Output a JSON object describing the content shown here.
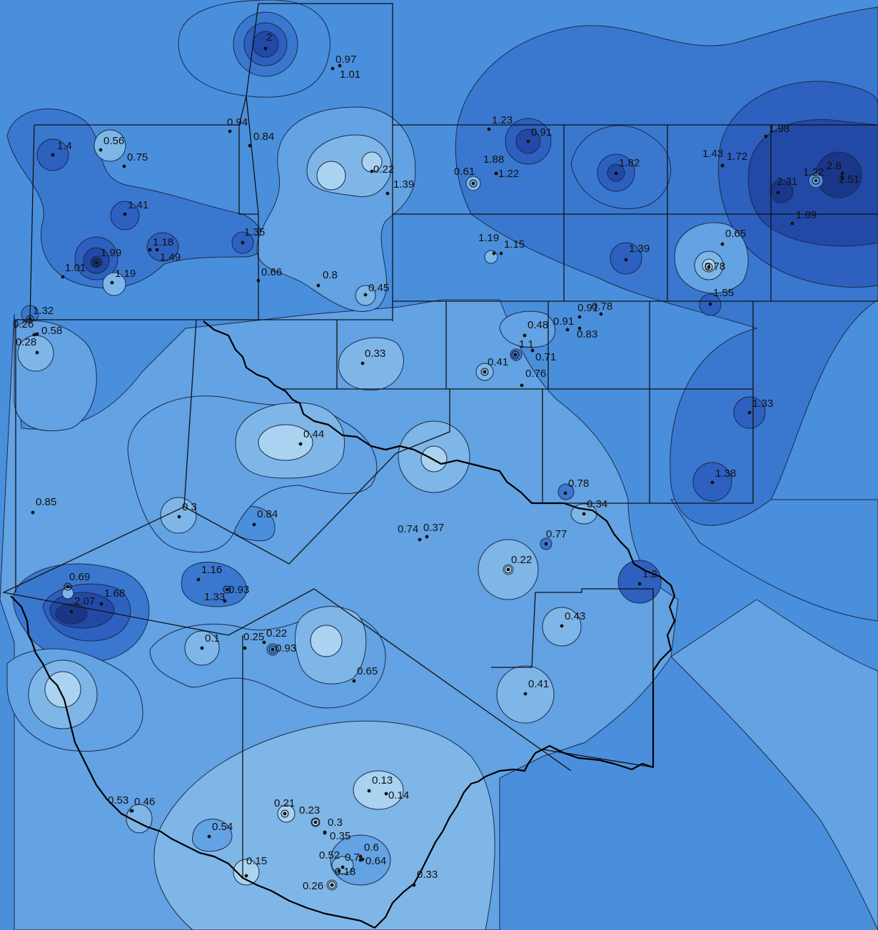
{
  "map": {
    "colors": {
      "c1": "#a9d3f0",
      "c2": "#7fb6e8",
      "c3": "#63a2e3",
      "c4": "#4a8fdc",
      "c5": "#3a78d0",
      "c6": "#2d60bf",
      "c7": "#2249a6",
      "c8": "#1a3688",
      "line": "#1b2a4a"
    },
    "stations": [
      {
        "label": "2"
      },
      {
        "label": "0.97"
      },
      {
        "label": "1.01"
      },
      {
        "label": "0.94"
      },
      {
        "label": "0.84"
      },
      {
        "label": "0.56"
      },
      {
        "label": "1.4"
      },
      {
        "label": "0.75"
      },
      {
        "label": "1.41"
      },
      {
        "label": "1.18"
      },
      {
        "label": "1.49"
      },
      {
        "label": "1.99"
      },
      {
        "label": "1.01"
      },
      {
        "label": "1.19"
      },
      {
        "label": "1.35"
      },
      {
        "label": "0.66"
      },
      {
        "label": "0.8"
      },
      {
        "label": "0.22"
      },
      {
        "label": "1.39"
      },
      {
        "label": "0.45"
      },
      {
        "label": "1.23"
      },
      {
        "label": "1.88"
      },
      {
        "label": "1.22"
      },
      {
        "label": "0.61"
      },
      {
        "label": "0.91"
      },
      {
        "label": "1.82"
      },
      {
        "label": "1.43"
      },
      {
        "label": "1.72"
      },
      {
        "label": "1.98"
      },
      {
        "label": "1.22"
      },
      {
        "label": "2.8"
      },
      {
        "label": "2.31"
      },
      {
        "label": "2.51"
      },
      {
        "label": "1.89"
      },
      {
        "label": "1.19"
      },
      {
        "label": "1.15"
      },
      {
        "label": "1.39"
      },
      {
        "label": "0.65"
      },
      {
        "label": "0.78"
      },
      {
        "label": "1.55"
      },
      {
        "label": "0.91"
      },
      {
        "label": "0.78"
      },
      {
        "label": "0.91"
      },
      {
        "label": "0.83"
      },
      {
        "label": "0.48"
      },
      {
        "label": "1.1"
      },
      {
        "label": "0.71"
      },
      {
        "label": "0.41"
      },
      {
        "label": "0.76"
      },
      {
        "label": "0.33"
      },
      {
        "label": "1.32"
      },
      {
        "label": "0.26"
      },
      {
        "label": "0.58"
      },
      {
        "label": "0.28"
      },
      {
        "label": "0.44"
      },
      {
        "label": "1.33"
      },
      {
        "label": "1.38"
      },
      {
        "label": "0.78"
      },
      {
        "label": "0.34"
      },
      {
        "label": "0.85"
      },
      {
        "label": "0.3"
      },
      {
        "label": "0.84"
      },
      {
        "label": "0.74"
      },
      {
        "label": "0.37"
      },
      {
        "label": "0.77"
      },
      {
        "label": "0.22"
      },
      {
        "label": "1.2"
      },
      {
        "label": "0.69"
      },
      {
        "label": "1.16"
      },
      {
        "label": "0.93"
      },
      {
        "label": "1.33"
      },
      {
        "label": "2.07"
      },
      {
        "label": "1.68"
      },
      {
        "label": "0.43"
      },
      {
        "label": "0.1"
      },
      {
        "label": "0.25"
      },
      {
        "label": "0.22"
      },
      {
        "label": "0.93"
      },
      {
        "label": "0.65"
      },
      {
        "label": "0.41"
      },
      {
        "label": "0.13"
      },
      {
        "label": "0.14"
      },
      {
        "label": "0.53"
      },
      {
        "label": "0.46"
      },
      {
        "label": "0.21"
      },
      {
        "label": "0.23"
      },
      {
        "label": "0.3"
      },
      {
        "label": "0.35"
      },
      {
        "label": "0.54"
      },
      {
        "label": "0.6"
      },
      {
        "label": "0.52"
      },
      {
        "label": "0.7"
      },
      {
        "label": "0.64"
      },
      {
        "label": "0.18"
      },
      {
        "label": "0.15"
      },
      {
        "label": "0.26"
      },
      {
        "label": "0.33"
      }
    ]
  }
}
